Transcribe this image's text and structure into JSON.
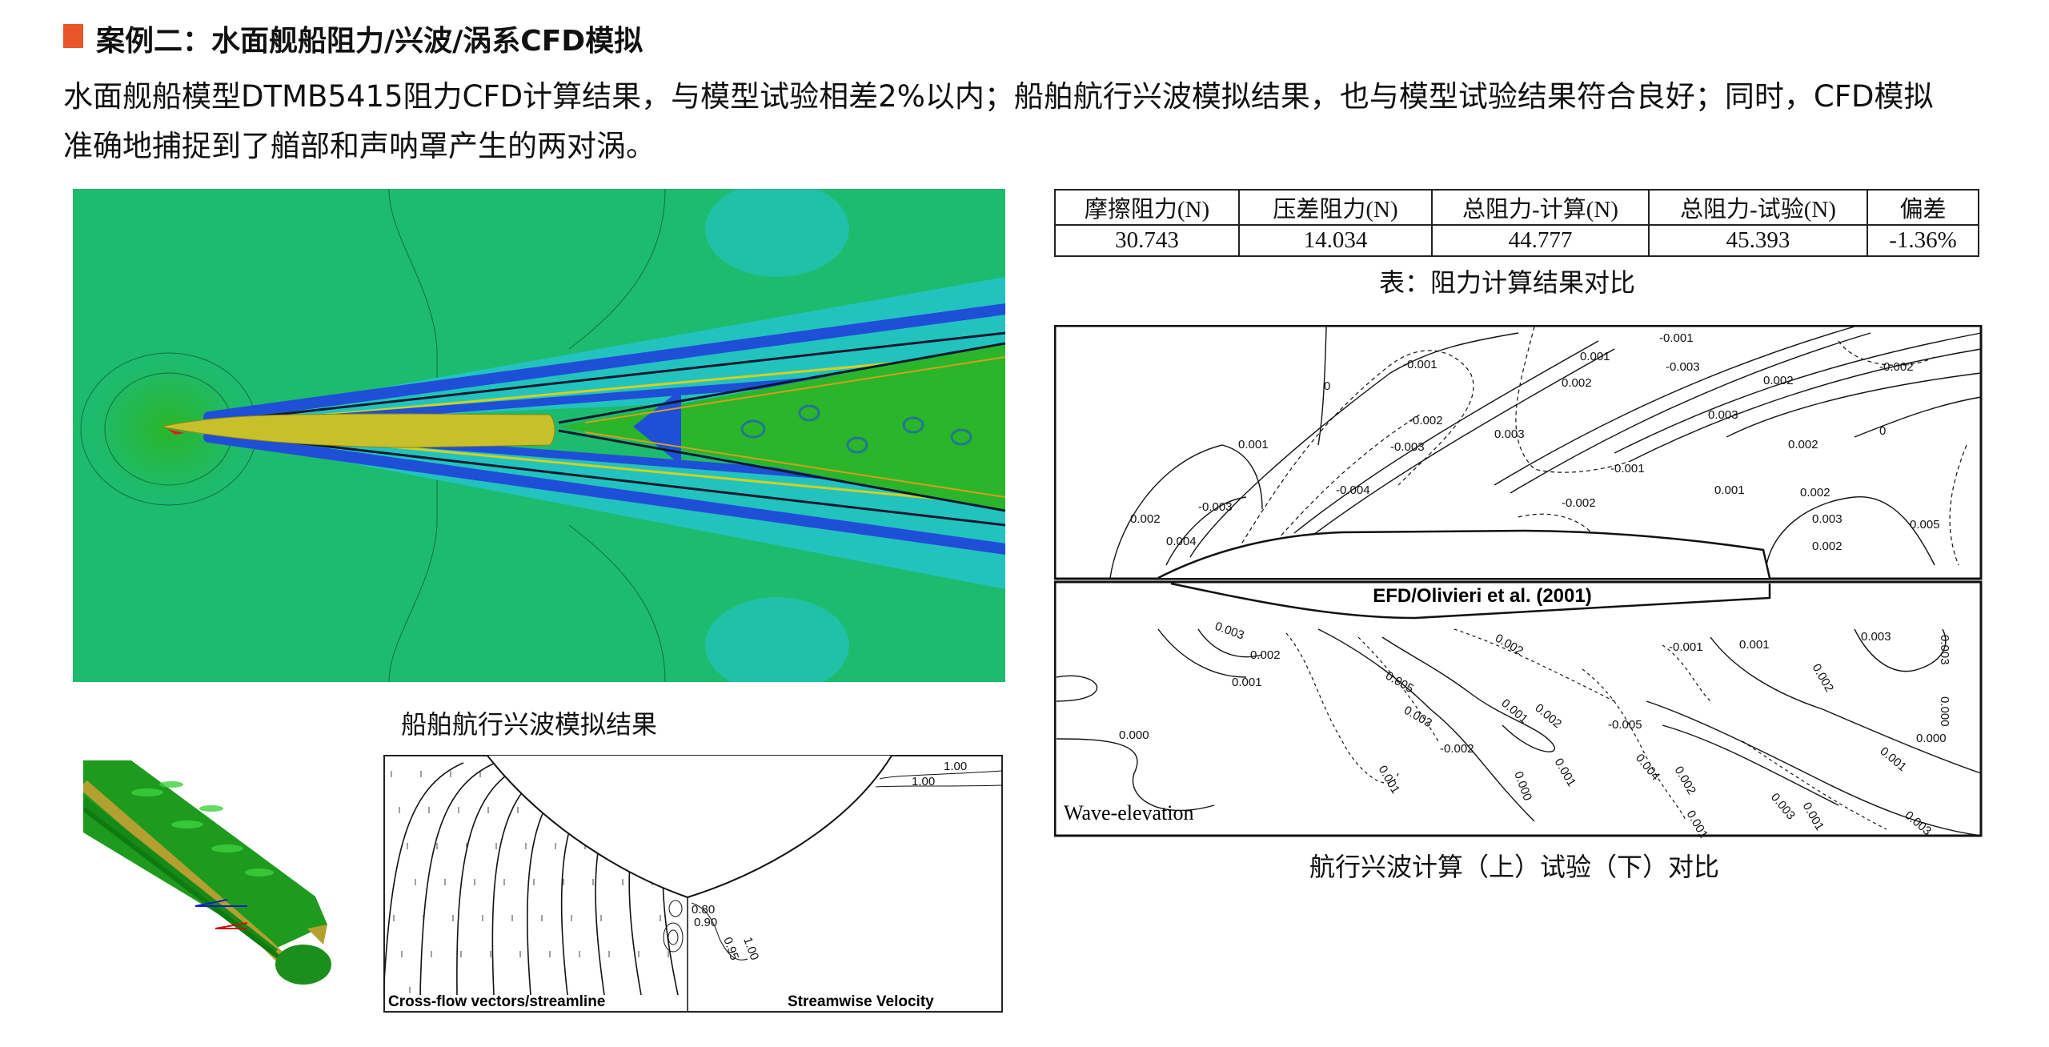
{
  "header": {
    "title": "案例二：水面舰船阻力/兴波/涡系CFD模拟",
    "accent_color": "#e8562a"
  },
  "intro": {
    "line1": "水面舰船模型DTMB5415阻力CFD计算结果，与模型试验相差2%以内；船舶航行兴波模拟结果，也与模型试验结果符合良好；同时，CFD模拟",
    "line2": "准确地捕捉到了艏部和声呐罩产生的两对涡。"
  },
  "wave_figure": {
    "caption": "船舶航行兴波模拟结果",
    "colors": {
      "base": "#1dbb6e",
      "blue": "#1f4fd6",
      "cyan": "#22c3bf",
      "green": "#2bb52a",
      "hull": "#c8c02a"
    }
  },
  "resistance_table": {
    "headers": [
      "摩擦阻力(N)",
      "压差阻力(N)",
      "总阻力-计算(N)",
      "总阻力-试验(N)",
      "偏差"
    ],
    "values": [
      "30.743",
      "14.034",
      "44.777",
      "45.393",
      "-1.36%"
    ],
    "caption": "表：阻力计算结果对比"
  },
  "contour_figure": {
    "top_labels": [
      "0",
      "-0.001",
      "0.001",
      "-0.001",
      "-0.003",
      "0.002",
      "-0.002",
      "-0.003",
      "0.001",
      "0.003",
      "-0.004",
      "0.002",
      "0.003",
      "-0.002",
      "0",
      "0.002",
      "-0.001",
      "0.001",
      "-0.002",
      "0.002",
      "0.003",
      "0.002",
      "-0.003",
      "0.004",
      "0.002",
      "0.005"
    ],
    "bottom_title": "EFD/Olivieri et al. (2001)",
    "bottom_labels": [
      "0.003",
      "0.002",
      "0.001",
      "0.000",
      "0.005",
      "0.003",
      "-0.002",
      "0.001",
      "0.002",
      "-0.001",
      "0.001",
      "0.003",
      "0.002",
      "0.003",
      "0.000",
      "-0.005",
      "0.001",
      "0.002",
      "0.000",
      "0.001",
      "0.004",
      "0.002",
      "0.001",
      "0.000",
      "0.001",
      "0.003",
      "0.001",
      "0.003"
    ],
    "legend_label": "Wave-elevation",
    "caption": "航行兴波计算（上）试验（下）对比"
  },
  "crossflow_figure": {
    "left_label": "Cross-flow vectors/streamline",
    "right_label": "Streamwise Velocity",
    "contour_labels": [
      "1.00",
      "1.00",
      "0.80",
      "0.90",
      "0.95",
      "1.00"
    ]
  }
}
